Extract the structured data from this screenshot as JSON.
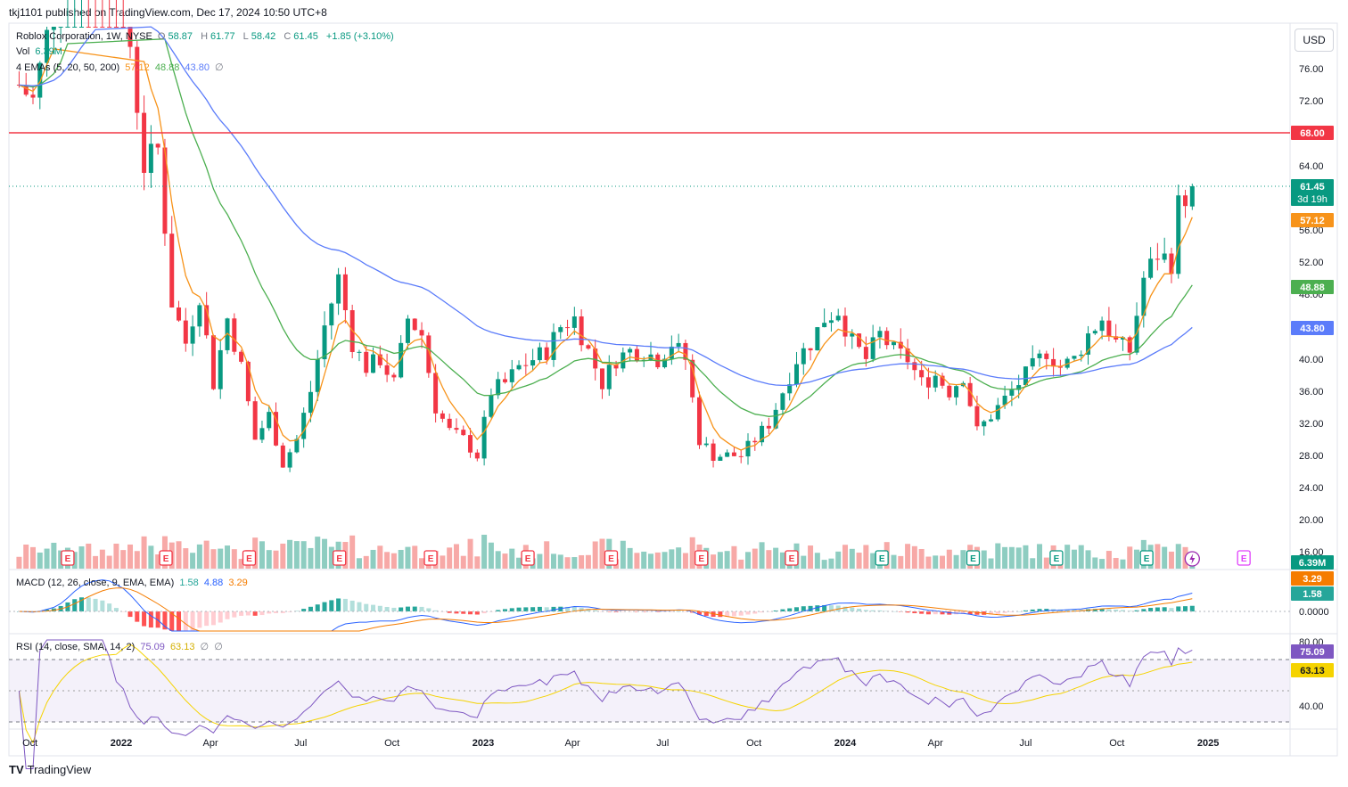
{
  "publisher": "tkj1101 published on TradingView.com, Dec 17, 2024 10:50 UTC+8",
  "currency_button": "USD",
  "brand": {
    "logo_icon": "tradingview-logo-icon",
    "name": "TradingView"
  },
  "legend": {
    "symbol": "Roblox Corporation, 1W, NYSE",
    "ohlc": {
      "o_label": "O",
      "o": "58.87",
      "h_label": "H",
      "h": "61.77",
      "l_label": "L",
      "l": "58.42",
      "c_label": "C",
      "c": "61.45",
      "chg": "+1.85 (+3.10%)"
    },
    "vol_label": "Vol",
    "vol": "6.39M",
    "emas_label": "4 EMAs (5, 20, 50, 200)",
    "ema5": "57.12",
    "ema20": "48.88",
    "ema50": "43.80",
    "ema200": "∅"
  },
  "macd_legend": {
    "label": "MACD (12, 26, close, 9, EMA, EMA)",
    "hist": "1.58",
    "macd": "4.88",
    "signal": "3.29"
  },
  "rsi_legend": {
    "label": "RSI (14, close, SMA, 14, 2)",
    "rsi": "75.09",
    "ma": "63.13",
    "b1": "∅",
    "b2": "∅"
  },
  "price_axis": {
    "ticks": [
      "76.00",
      "72.00",
      "64.00",
      "56.00",
      "52.00",
      "48.00",
      "40.00",
      "36.00",
      "32.00",
      "28.00",
      "24.00",
      "20.00",
      "16.00"
    ]
  },
  "price_badges": {
    "resistance": "68.00",
    "last": "61.45",
    "countdown": "3d 19h",
    "ema5": "57.12",
    "ema20": "48.88",
    "ema50": "43.80",
    "volume": "6.39M"
  },
  "macd_axis": {
    "signal": "3.29",
    "hist": "1.58",
    "zero": "0.0000"
  },
  "rsi_axis": {
    "top": "80.00",
    "rsi": "75.09",
    "ma": "63.13",
    "low": "40.00"
  },
  "time_axis": [
    "Oct",
    "2022",
    "Apr",
    "Jul",
    "Oct",
    "2023",
    "Apr",
    "Jul",
    "Oct",
    "2024",
    "Apr",
    "Jul",
    "Oct",
    "2025"
  ],
  "event_marker": "E",
  "colors": {
    "up": "#089981",
    "down": "#f23645",
    "ema5": "#f7931a",
    "ema20": "#4caf50",
    "ema50": "#5b7cfa",
    "resistance": "#f23645",
    "rsi": "#7e57c2",
    "rsi_ma": "#f5d300",
    "macd": "#2962ff",
    "signal": "#f57c00"
  },
  "chart_data": {
    "type": "candlestick",
    "symbol": "RBLX",
    "interval": "1W",
    "horizontal_line": 68.0,
    "earnings_dates": [
      "2021-11-08",
      "2022-02-15",
      "2022-05-10",
      "2022-08-09",
      "2022-11-09",
      "2023-02-15",
      "2023-05-10",
      "2023-08-09",
      "2023-11-08",
      "2024-02-07",
      "2024-05-09",
      "2024-08-01",
      "2024-10-31",
      "2025-02-06"
    ],
    "close_series": [
      {
        "d": "2021-09-20",
        "c": 74
      },
      {
        "d": "2021-10-04",
        "c": 72
      },
      {
        "d": "2021-10-25",
        "c": 84
      },
      {
        "d": "2021-11-15",
        "c": 110
      },
      {
        "d": "2021-12-06",
        "c": 108
      },
      {
        "d": "2021-12-20",
        "c": 103
      },
      {
        "d": "2022-01-10",
        "c": 79
      },
      {
        "d": "2022-01-24",
        "c": 64
      },
      {
        "d": "2022-02-07",
        "c": 66
      },
      {
        "d": "2022-02-21",
        "c": 47
      },
      {
        "d": "2022-03-07",
        "c": 42
      },
      {
        "d": "2022-03-21",
        "c": 48
      },
      {
        "d": "2022-04-04",
        "c": 37
      },
      {
        "d": "2022-04-18",
        "c": 45
      },
      {
        "d": "2022-05-02",
        "c": 39
      },
      {
        "d": "2022-05-16",
        "c": 30
      },
      {
        "d": "2022-05-30",
        "c": 33
      },
      {
        "d": "2022-06-13",
        "c": 27
      },
      {
        "d": "2022-06-27",
        "c": 30
      },
      {
        "d": "2022-07-11",
        "c": 36
      },
      {
        "d": "2022-07-25",
        "c": 44
      },
      {
        "d": "2022-08-08",
        "c": 50
      },
      {
        "d": "2022-08-22",
        "c": 42
      },
      {
        "d": "2022-09-05",
        "c": 39
      },
      {
        "d": "2022-09-19",
        "c": 40
      },
      {
        "d": "2022-10-03",
        "c": 37
      },
      {
        "d": "2022-10-17",
        "c": 45
      },
      {
        "d": "2022-10-31",
        "c": 43
      },
      {
        "d": "2022-11-14",
        "c": 34
      },
      {
        "d": "2022-11-28",
        "c": 31
      },
      {
        "d": "2022-12-12",
        "c": 30
      },
      {
        "d": "2022-12-26",
        "c": 28
      },
      {
        "d": "2023-01-09",
        "c": 36
      },
      {
        "d": "2023-01-23",
        "c": 37
      },
      {
        "d": "2023-02-06",
        "c": 39
      },
      {
        "d": "2023-02-20",
        "c": 40
      },
      {
        "d": "2023-03-06",
        "c": 41
      },
      {
        "d": "2023-03-20",
        "c": 44
      },
      {
        "d": "2023-04-03",
        "c": 45
      },
      {
        "d": "2023-04-17",
        "c": 41
      },
      {
        "d": "2023-05-01",
        "c": 37
      },
      {
        "d": "2023-05-15",
        "c": 40
      },
      {
        "d": "2023-05-29",
        "c": 41
      },
      {
        "d": "2023-06-12",
        "c": 41
      },
      {
        "d": "2023-06-26",
        "c": 40
      },
      {
        "d": "2023-07-10",
        "c": 42
      },
      {
        "d": "2023-07-24",
        "c": 40
      },
      {
        "d": "2023-08-07",
        "c": 30
      },
      {
        "d": "2023-08-21",
        "c": 28
      },
      {
        "d": "2023-09-04",
        "c": 28
      },
      {
        "d": "2023-09-18",
        "c": 28
      },
      {
        "d": "2023-10-02",
        "c": 30
      },
      {
        "d": "2023-10-16",
        "c": 32
      },
      {
        "d": "2023-10-30",
        "c": 36
      },
      {
        "d": "2023-11-13",
        "c": 40
      },
      {
        "d": "2023-11-27",
        "c": 42
      },
      {
        "d": "2023-12-11",
        "c": 45
      },
      {
        "d": "2023-12-25",
        "c": 46
      },
      {
        "d": "2024-01-08",
        "c": 42
      },
      {
        "d": "2024-01-22",
        "c": 40
      },
      {
        "d": "2024-02-05",
        "c": 43
      },
      {
        "d": "2024-02-19",
        "c": 41
      },
      {
        "d": "2024-03-04",
        "c": 40
      },
      {
        "d": "2024-03-18",
        "c": 37
      },
      {
        "d": "2024-04-01",
        "c": 38
      },
      {
        "d": "2024-04-15",
        "c": 36
      },
      {
        "d": "2024-04-29",
        "c": 38
      },
      {
        "d": "2024-05-13",
        "c": 31
      },
      {
        "d": "2024-05-27",
        "c": 33
      },
      {
        "d": "2024-06-10",
        "c": 35
      },
      {
        "d": "2024-06-24",
        "c": 37
      },
      {
        "d": "2024-07-08",
        "c": 39
      },
      {
        "d": "2024-07-22",
        "c": 41
      },
      {
        "d": "2024-08-05",
        "c": 39
      },
      {
        "d": "2024-08-19",
        "c": 40
      },
      {
        "d": "2024-09-02",
        "c": 43
      },
      {
        "d": "2024-09-16",
        "c": 45
      },
      {
        "d": "2024-09-30",
        "c": 42
      },
      {
        "d": "2024-10-14",
        "c": 41
      },
      {
        "d": "2024-10-28",
        "c": 50
      },
      {
        "d": "2024-11-11",
        "c": 53
      },
      {
        "d": "2024-11-25",
        "c": 52
      },
      {
        "d": "2024-12-02",
        "c": 59
      },
      {
        "d": "2024-12-16",
        "c": 61.45
      }
    ],
    "ema_last": {
      "ema5": 57.12,
      "ema20": 48.88,
      "ema50": 43.8
    },
    "macd_last": {
      "macd": 4.88,
      "signal": 3.29,
      "hist": 1.58
    },
    "rsi_last": {
      "rsi": 75.09,
      "ma": 63.13
    }
  }
}
